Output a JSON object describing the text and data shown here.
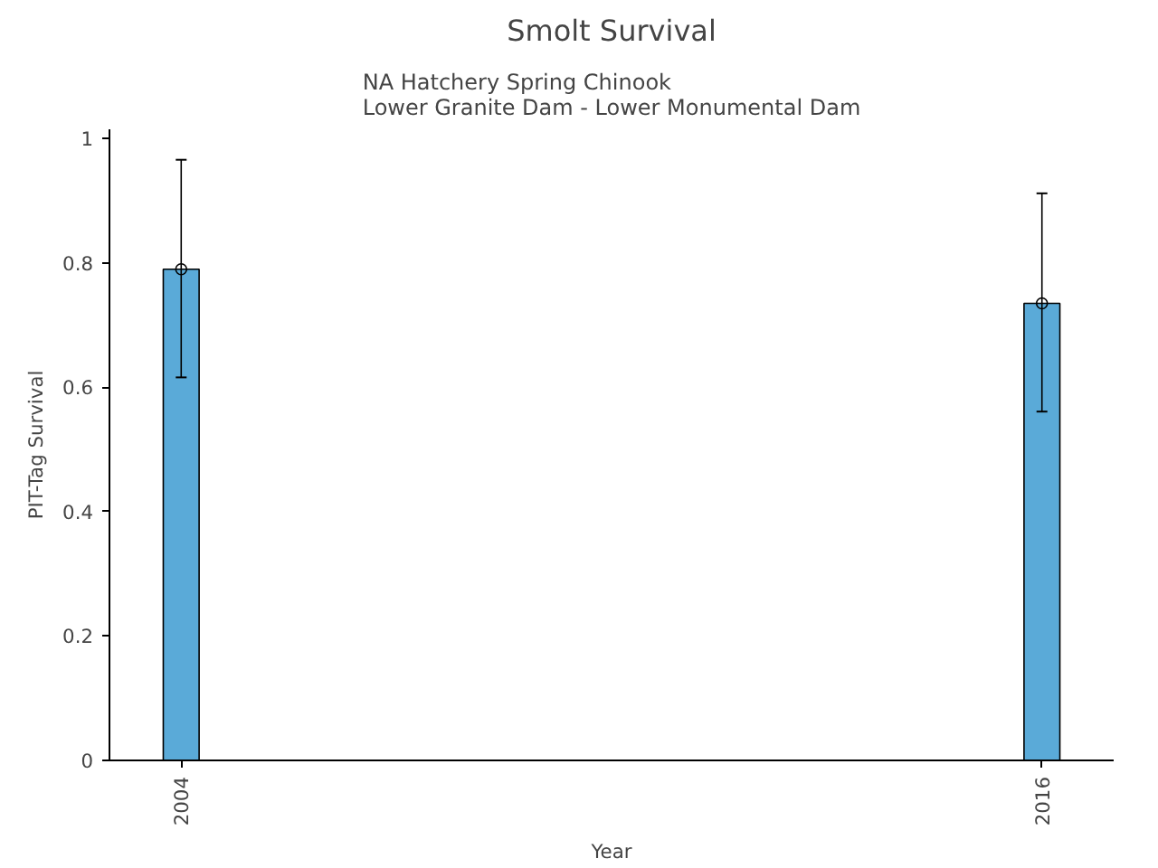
{
  "chart_data": {
    "type": "bar",
    "title": "Smolt Survival",
    "subtitle": "NA Hatchery Spring Chinook\nLower Granite Dam - Lower Monumental Dam",
    "xlabel": "Year",
    "ylabel": "PIT-Tag Survival",
    "x": [
      2004,
      2016
    ],
    "xlim": [
      2003,
      2017
    ],
    "xticks": [
      2004,
      2016
    ],
    "ylim": [
      0,
      1.015
    ],
    "yticks": [
      0,
      0.2,
      0.4,
      0.6,
      0.8,
      1
    ],
    "series": [
      {
        "color": "#5aaad8",
        "values": [
          0.79,
          0.735
        ]
      },
      {
        "type": "scatter",
        "color": "#000000",
        "marker": "circle",
        "values": [
          0.79,
          0.735
        ],
        "errors": [
          [
            0.616,
            0.966
          ],
          [
            0.561,
            0.912
          ]
        ]
      }
    ],
    "grid": false
  }
}
